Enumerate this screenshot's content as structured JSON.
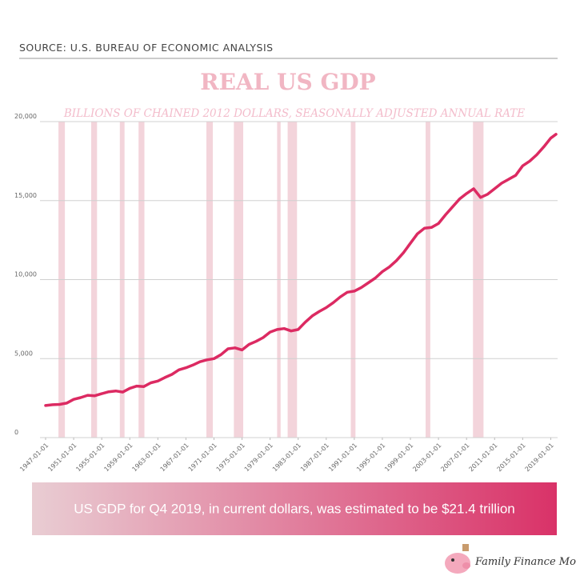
{
  "source": "SOURCE: U.S. BUREAU OF ECONOMIC ANALYSIS",
  "chart_data": {
    "type": "line",
    "title": "REAL US GDP",
    "subtitle": "BILLIONS OF CHAINED 2012 DOLLARS, SEASONALLY ADJUSTED ANNUAL RATE",
    "color": "#dc2a62",
    "band_color": "#f1cdd5",
    "grid": true,
    "x": [
      "1947-01-01",
      "1948-01-01",
      "1949-01-01",
      "1950-01-01",
      "1951-01-01",
      "1952-01-01",
      "1953-01-01",
      "1954-01-01",
      "1955-01-01",
      "1956-01-01",
      "1957-01-01",
      "1958-01-01",
      "1959-01-01",
      "1960-01-01",
      "1961-01-01",
      "1962-01-01",
      "1963-01-01",
      "1964-01-01",
      "1965-01-01",
      "1966-01-01",
      "1967-01-01",
      "1968-01-01",
      "1969-01-01",
      "1970-01-01",
      "1971-01-01",
      "1972-01-01",
      "1973-01-01",
      "1974-01-01",
      "1975-01-01",
      "1976-01-01",
      "1977-01-01",
      "1978-01-01",
      "1979-01-01",
      "1980-01-01",
      "1981-01-01",
      "1982-01-01",
      "1983-01-01",
      "1984-01-01",
      "1985-01-01",
      "1986-01-01",
      "1987-01-01",
      "1988-01-01",
      "1989-01-01",
      "1990-01-01",
      "1991-01-01",
      "1992-01-01",
      "1993-01-01",
      "1994-01-01",
      "1995-01-01",
      "1996-01-01",
      "1997-01-01",
      "1998-01-01",
      "1999-01-01",
      "2000-01-01",
      "2001-01-01",
      "2002-01-01",
      "2003-01-01",
      "2004-01-01",
      "2005-01-01",
      "2006-01-01",
      "2007-01-01",
      "2008-01-01",
      "2009-01-01",
      "2010-01-01",
      "2011-01-01",
      "2012-01-01",
      "2013-01-01",
      "2014-01-01",
      "2015-01-01",
      "2016-01-01",
      "2017-01-01",
      "2018-01-01",
      "2019-01-01",
      "2019-10-01"
    ],
    "values": [
      2030,
      2080,
      2100,
      2180,
      2420,
      2530,
      2680,
      2650,
      2780,
      2900,
      2950,
      2880,
      3120,
      3260,
      3230,
      3470,
      3580,
      3800,
      4000,
      4290,
      4420,
      4590,
      4800,
      4920,
      5000,
      5250,
      5620,
      5680,
      5550,
      5900,
      6090,
      6330,
      6680,
      6840,
      6900,
      6750,
      6840,
      7300,
      7700,
      7980,
      8230,
      8540,
      8900,
      9200,
      9270,
      9500,
      9800,
      10100,
      10500,
      10800,
      11200,
      11700,
      12300,
      12900,
      13250,
      13300,
      13550,
      14100,
      14600,
      15100,
      15450,
      15750,
      15200,
      15400,
      15750,
      16100,
      16350,
      16600,
      17200,
      17500,
      17900,
      18400,
      18950,
      19200
    ],
    "recessions": [
      {
        "start": "1948-11-01",
        "end": "1949-10-01"
      },
      {
        "start": "1953-07-01",
        "end": "1954-05-01"
      },
      {
        "start": "1957-08-01",
        "end": "1958-04-01"
      },
      {
        "start": "1960-04-01",
        "end": "1961-02-01"
      },
      {
        "start": "1969-12-01",
        "end": "1970-11-01"
      },
      {
        "start": "1973-11-01",
        "end": "1975-03-01"
      },
      {
        "start": "1980-01-01",
        "end": "1980-07-01"
      },
      {
        "start": "1981-07-01",
        "end": "1982-11-01"
      },
      {
        "start": "1990-07-01",
        "end": "1991-03-01"
      },
      {
        "start": "2001-03-01",
        "end": "2001-11-01"
      },
      {
        "start": "2007-12-01",
        "end": "2009-06-01"
      }
    ],
    "xlim": [
      "1947-01-01",
      "2019-10-01"
    ],
    "xticks": [
      "1947-01-01",
      "1951-01-01",
      "1955-01-01",
      "1959-01-01",
      "1963-01-01",
      "1967-01-01",
      "1971-01-01",
      "1975-01-01",
      "1979-01-01",
      "1983-01-01",
      "1987-01-01",
      "1991-01-01",
      "1995-01-01",
      "1999-01-01",
      "2003-01-01",
      "2007-01-01",
      "2011-01-01",
      "2015-01-01",
      "2019-01-01"
    ],
    "ylim": [
      0,
      20000
    ],
    "yticks": [
      0,
      {
        "value": 5000,
        "label": "5,000"
      },
      {
        "value": 10000,
        "label": "10,000"
      },
      {
        "value": 15000,
        "label": "15,000"
      },
      {
        "value": 20000,
        "label": "20,000"
      }
    ]
  },
  "banner": "US GDP for Q4 2019, in current dollars, was estimated to be $21.4 trillion",
  "logo": "Family Finance Mom"
}
